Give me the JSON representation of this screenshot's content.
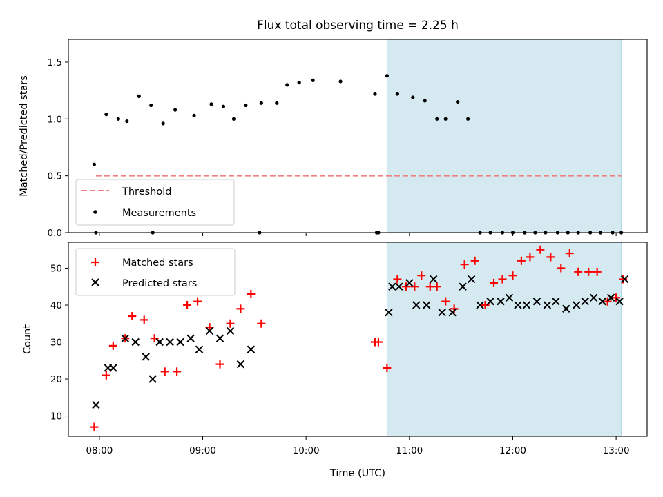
{
  "chart_data": [
    {
      "type": "scatter",
      "title": "Flux total observing time = 2.25 h",
      "xlabel": "",
      "ylabel": "Matched/Predicted stars",
      "ylim": [
        0,
        1.7
      ],
      "yticks": [
        0.0,
        0.5,
        1.0,
        1.5
      ],
      "ytick_labels": [
        "0.0",
        "0.5",
        "1.0",
        "1.5"
      ],
      "xlim": [
        "07:42",
        "13:18"
      ],
      "xticks": [
        "08:00",
        "09:00",
        "10:00",
        "11:00",
        "12:00",
        "13:00"
      ],
      "shaded_span": [
        "10:47",
        "13:03"
      ],
      "shade_color": "#d4eaf0",
      "legend_position": "lower-left",
      "threshold": {
        "name": "Threshold",
        "value": 0.5,
        "x_range": [
          "07:58",
          "13:03"
        ],
        "color": "#f08080"
      },
      "series": [
        {
          "name": "Measurements",
          "color": "#000000",
          "x": [
            "07:57",
            "08:04",
            "08:11",
            "08:16",
            "08:23",
            "08:30",
            "08:37",
            "08:44",
            "08:55",
            "09:05",
            "09:12",
            "09:18",
            "09:25",
            "09:34",
            "09:43",
            "09:49",
            "09:56",
            "10:04",
            "10:20",
            "10:40",
            "10:47",
            "10:53",
            "11:02",
            "11:09",
            "11:16",
            "11:21",
            "11:28",
            "11:34",
            "11:41",
            "11:47",
            "11:54",
            "12:00",
            "12:07",
            "12:13",
            "12:19",
            "12:26",
            "12:32",
            "12:38",
            "12:45",
            "12:51",
            "12:58",
            "13:03",
            "07:58",
            "08:31",
            "09:33",
            "10:41",
            "10:42"
          ],
          "y": [
            0.6,
            1.04,
            1.0,
            0.98,
            1.2,
            1.12,
            0.96,
            1.08,
            1.03,
            1.13,
            1.11,
            1.0,
            1.12,
            1.14,
            1.14,
            1.3,
            1.32,
            1.34,
            1.33,
            1.22,
            1.38,
            1.22,
            1.19,
            1.16,
            1.0,
            1.0,
            1.15,
            1.0,
            0.0,
            0.0,
            0.0,
            0.0,
            0.0,
            0.0,
            0.0,
            0.0,
            0.0,
            0.0,
            0.0,
            0.0,
            0.0,
            0.0,
            0.0,
            0.0,
            0.0,
            0.0,
            0.0
          ]
        }
      ]
    },
    {
      "type": "scatter",
      "xlabel": "Time (UTC)",
      "ylabel": "Count",
      "ylim": [
        4.5,
        57
      ],
      "yticks": [
        10,
        20,
        30,
        40,
        50
      ],
      "ytick_labels": [
        "10",
        "20",
        "30",
        "40",
        "50"
      ],
      "xlim": [
        "07:42",
        "13:18"
      ],
      "xticks": [
        "08:00",
        "09:00",
        "10:00",
        "11:00",
        "12:00",
        "13:00"
      ],
      "xtick_labels": [
        "08:00",
        "09:00",
        "10:00",
        "11:00",
        "12:00",
        "13:00"
      ],
      "shaded_span": [
        "10:47",
        "13:03"
      ],
      "shade_color": "#d4eaf0",
      "legend_position": "upper-left",
      "series": [
        {
          "name": "Matched stars",
          "marker": "plus",
          "color": "#ff0000",
          "x": [
            "07:57",
            "08:04",
            "08:08",
            "08:15",
            "08:19",
            "08:26",
            "08:32",
            "08:38",
            "08:45",
            "08:51",
            "08:57",
            "09:04",
            "09:10",
            "09:16",
            "09:22",
            "09:28",
            "09:34",
            "10:40",
            "10:42",
            "10:47",
            "10:53",
            "10:58",
            "11:03",
            "11:07",
            "11:12",
            "11:16",
            "11:21",
            "11:26",
            "11:32",
            "11:38",
            "11:44",
            "11:49",
            "11:54",
            "12:00",
            "12:05",
            "12:10",
            "12:16",
            "12:22",
            "12:28",
            "12:33",
            "12:38",
            "12:44",
            "12:49",
            "12:55",
            "13:00",
            "13:04"
          ],
          "y": [
            7,
            21,
            29,
            31,
            37,
            36,
            31,
            22,
            22,
            40,
            41,
            34,
            24,
            35,
            39,
            43,
            35,
            30,
            30,
            23,
            47,
            45,
            45,
            48,
            45,
            45,
            41,
            39,
            51,
            52,
            40,
            46,
            47,
            48,
            52,
            53,
            55,
            53,
            50,
            54,
            49,
            49,
            49,
            41,
            42,
            47
          ]
        },
        {
          "name": "Predicted stars",
          "marker": "x",
          "color": "#000000",
          "x": [
            "07:58",
            "08:05",
            "08:08",
            "08:15",
            "08:21",
            "08:27",
            "08:31",
            "08:35",
            "08:41",
            "08:47",
            "08:53",
            "08:58",
            "09:04",
            "09:10",
            "09:16",
            "09:22",
            "09:28",
            "10:50",
            "10:54",
            "11:00",
            "11:04",
            "11:10",
            "11:14",
            "11:19",
            "11:25",
            "11:31",
            "11:36",
            "11:41",
            "11:47",
            "11:53",
            "11:58",
            "12:03",
            "12:08",
            "12:14",
            "12:20",
            "12:25",
            "12:31",
            "12:37",
            "12:42",
            "12:47",
            "12:52",
            "12:57",
            "13:02",
            "13:05",
            "10:48"
          ],
          "y": [
            13,
            23,
            23,
            31,
            30,
            26,
            20,
            30,
            30,
            30,
            31,
            28,
            33,
            31,
            33,
            24,
            28,
            45,
            45,
            46,
            40,
            40,
            47,
            38,
            38,
            45,
            47,
            40,
            41,
            41,
            42,
            40,
            40,
            41,
            40,
            41,
            39,
            40,
            41,
            42,
            41,
            42,
            41,
            47,
            38
          ]
        }
      ]
    }
  ]
}
